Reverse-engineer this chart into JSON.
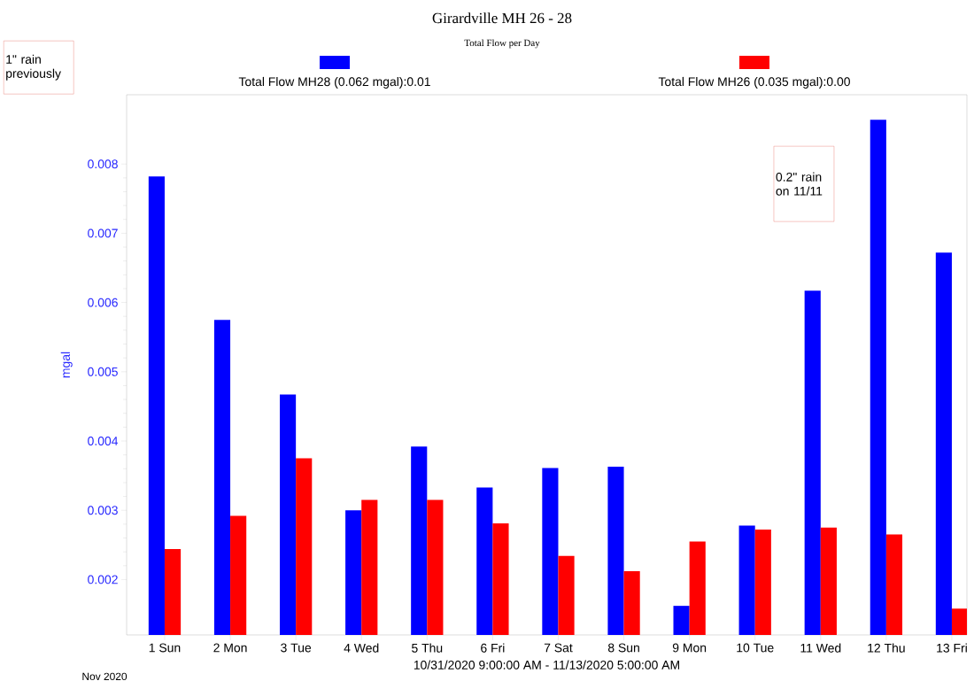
{
  "chart_data": {
    "type": "bar",
    "title": "Girardville MH 26 - 28",
    "subtitle": "Total Flow per Day",
    "xlabel": "10/31/2020 9:00:00 AM - 11/13/2020 5:00:00 AM",
    "ylabel": "mgal",
    "categories": [
      "1 Sun",
      "2 Mon",
      "3 Tue",
      "4 Wed",
      "5 Thu",
      "6 Fri",
      "7 Sat",
      "8 Sun",
      "9 Mon",
      "10 Tue",
      "11 Wed",
      "12 Thu",
      "13 Fri"
    ],
    "series": [
      {
        "name": "Total Flow MH28 (0.062 mgal):0.01",
        "color": "#0000ff",
        "values": [
          0.00782,
          0.00575,
          0.00467,
          0.003,
          0.00392,
          0.00333,
          0.00361,
          0.00363,
          0.00162,
          0.00278,
          0.00617,
          0.00864,
          0.00672
        ]
      },
      {
        "name": "Total Flow MH26 (0.035 mgal):0.00",
        "color": "#ff0000",
        "values": [
          0.00244,
          0.00292,
          0.00375,
          0.00315,
          0.00315,
          0.00281,
          0.00234,
          0.00212,
          0.00255,
          0.00272,
          0.00275,
          0.00265,
          0.00158
        ]
      }
    ],
    "ylim": [
      0.0012,
      0.009
    ],
    "yticks": [
      0.002,
      0.003,
      0.004,
      0.005,
      0.006,
      0.007,
      0.008
    ],
    "legend": "top",
    "annotations": [
      "1\" rain previously",
      "0.2\" rain on 11/11",
      "Nov 2020"
    ]
  }
}
